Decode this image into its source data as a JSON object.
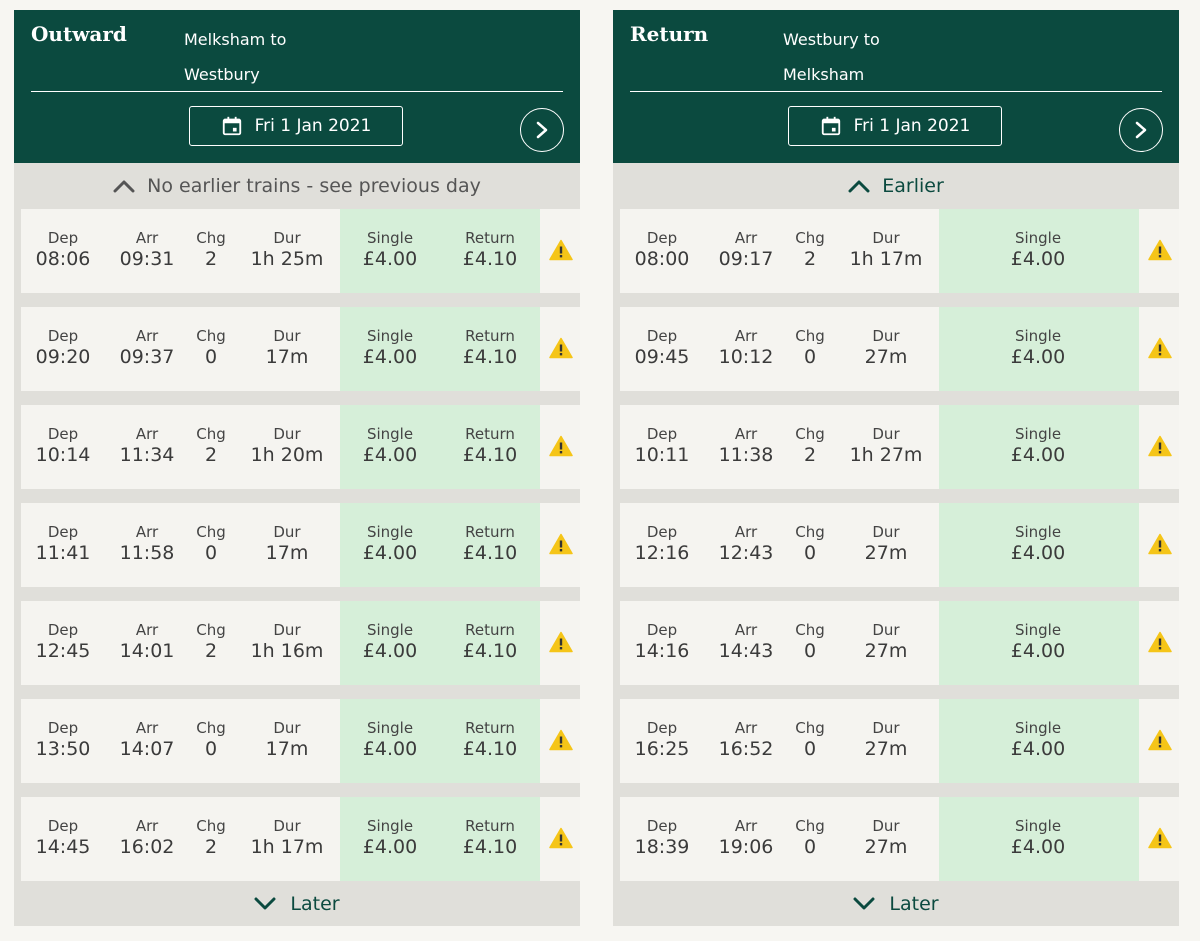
{
  "outward": {
    "title": "Outward",
    "from": "Melksham to",
    "to": "Westbury",
    "date": "Fri 1 Jan 2021",
    "earlier_label": "No earlier trains - see previous day",
    "later_label": "Later",
    "labels": {
      "dep": "Dep",
      "arr": "Arr",
      "chg": "Chg",
      "dur": "Dur",
      "single": "Single",
      "return": "Return"
    },
    "rows": [
      {
        "dep": "08:06",
        "arr": "09:31",
        "chg": "2",
        "dur": "1h 25m",
        "single": "£4.00",
        "return": "£4.10"
      },
      {
        "dep": "09:20",
        "arr": "09:37",
        "chg": "0",
        "dur": "17m",
        "single": "£4.00",
        "return": "£4.10"
      },
      {
        "dep": "10:14",
        "arr": "11:34",
        "chg": "2",
        "dur": "1h 20m",
        "single": "£4.00",
        "return": "£4.10"
      },
      {
        "dep": "11:41",
        "arr": "11:58",
        "chg": "0",
        "dur": "17m",
        "single": "£4.00",
        "return": "£4.10"
      },
      {
        "dep": "12:45",
        "arr": "14:01",
        "chg": "2",
        "dur": "1h 16m",
        "single": "£4.00",
        "return": "£4.10"
      },
      {
        "dep": "13:50",
        "arr": "14:07",
        "chg": "0",
        "dur": "17m",
        "single": "£4.00",
        "return": "£4.10"
      },
      {
        "dep": "14:45",
        "arr": "16:02",
        "chg": "2",
        "dur": "1h 17m",
        "single": "£4.00",
        "return": "£4.10"
      }
    ]
  },
  "return": {
    "title": "Return",
    "from": "Westbury to",
    "to": "Melksham",
    "date": "Fri 1 Jan 2021",
    "earlier_label": "Earlier",
    "later_label": "Later",
    "labels": {
      "dep": "Dep",
      "arr": "Arr",
      "chg": "Chg",
      "dur": "Dur",
      "single": "Single"
    },
    "rows": [
      {
        "dep": "08:00",
        "arr": "09:17",
        "chg": "2",
        "dur": "1h 17m",
        "single": "£4.00"
      },
      {
        "dep": "09:45",
        "arr": "10:12",
        "chg": "0",
        "dur": "27m",
        "single": "£4.00"
      },
      {
        "dep": "10:11",
        "arr": "11:38",
        "chg": "2",
        "dur": "1h 27m",
        "single": "£4.00"
      },
      {
        "dep": "12:16",
        "arr": "12:43",
        "chg": "0",
        "dur": "27m",
        "single": "£4.00"
      },
      {
        "dep": "14:16",
        "arr": "14:43",
        "chg": "0",
        "dur": "27m",
        "single": "£4.00"
      },
      {
        "dep": "16:25",
        "arr": "16:52",
        "chg": "0",
        "dur": "27m",
        "single": "£4.00"
      },
      {
        "dep": "18:39",
        "arr": "19:06",
        "chg": "0",
        "dur": "27m",
        "single": "£4.00"
      }
    ]
  },
  "icons": {
    "calendar": "calendar-icon",
    "next": "chevron-right-icon",
    "earlier": "chevron-up-icon",
    "later": "chevron-down-icon",
    "warning": "warning-icon"
  },
  "colors": {
    "header": "#0b4a3f",
    "fare_bg": "#d6efd9",
    "row_bg": "#f5f4f0",
    "panel_bg": "#e0dfda",
    "warning": "#f5c518"
  }
}
